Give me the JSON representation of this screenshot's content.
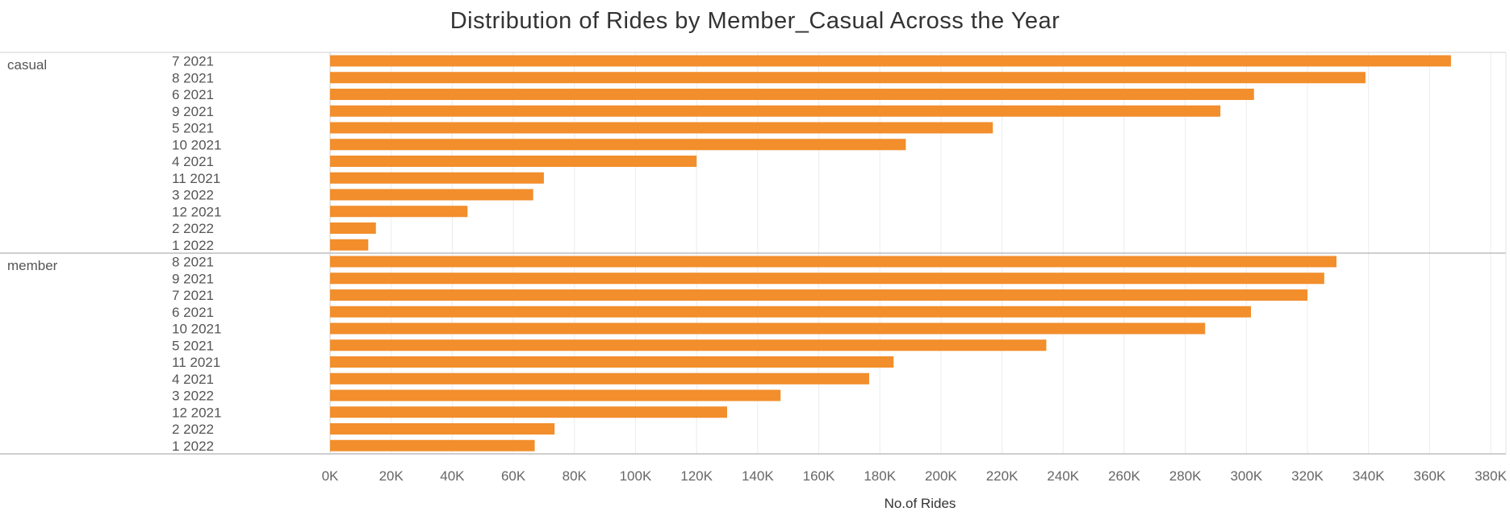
{
  "chart_data": {
    "type": "bar",
    "orientation": "horizontal",
    "title": "Distribution of Rides by Member_Casual Across the Year",
    "xlabel": "No.of Rides",
    "ylabel": "",
    "xlim": [
      0,
      385000
    ],
    "x_ticks": [
      0,
      20000,
      40000,
      60000,
      80000,
      100000,
      120000,
      140000,
      160000,
      180000,
      200000,
      220000,
      240000,
      260000,
      280000,
      300000,
      320000,
      340000,
      360000,
      380000
    ],
    "x_tick_labels": [
      "0K",
      "20K",
      "40K",
      "60K",
      "80K",
      "100K",
      "120K",
      "140K",
      "160K",
      "180K",
      "200K",
      "220K",
      "240K",
      "260K",
      "280K",
      "300K",
      "320K",
      "340K",
      "360K",
      "380K"
    ],
    "grid": "vertical",
    "bar_color": "#F28E2B",
    "groups": [
      {
        "name": "casual",
        "categories": [
          "7 2021",
          "8 2021",
          "6 2021",
          "9 2021",
          "5 2021",
          "10 2021",
          "4 2021",
          "11 2021",
          "3 2022",
          "12 2021",
          "2 2022",
          "1 2022"
        ],
        "values": [
          367000,
          339000,
          302500,
          291500,
          217000,
          188500,
          120000,
          70000,
          66500,
          45000,
          15000,
          12500
        ]
      },
      {
        "name": "member",
        "categories": [
          "8 2021",
          "9 2021",
          "7 2021",
          "6 2021",
          "10 2021",
          "5 2021",
          "11 2021",
          "4 2021",
          "3 2022",
          "12 2021",
          "2 2022",
          "1 2022"
        ],
        "values": [
          329500,
          325500,
          320000,
          301500,
          286500,
          234500,
          184500,
          176500,
          147500,
          130000,
          73500,
          67000
        ]
      }
    ]
  }
}
